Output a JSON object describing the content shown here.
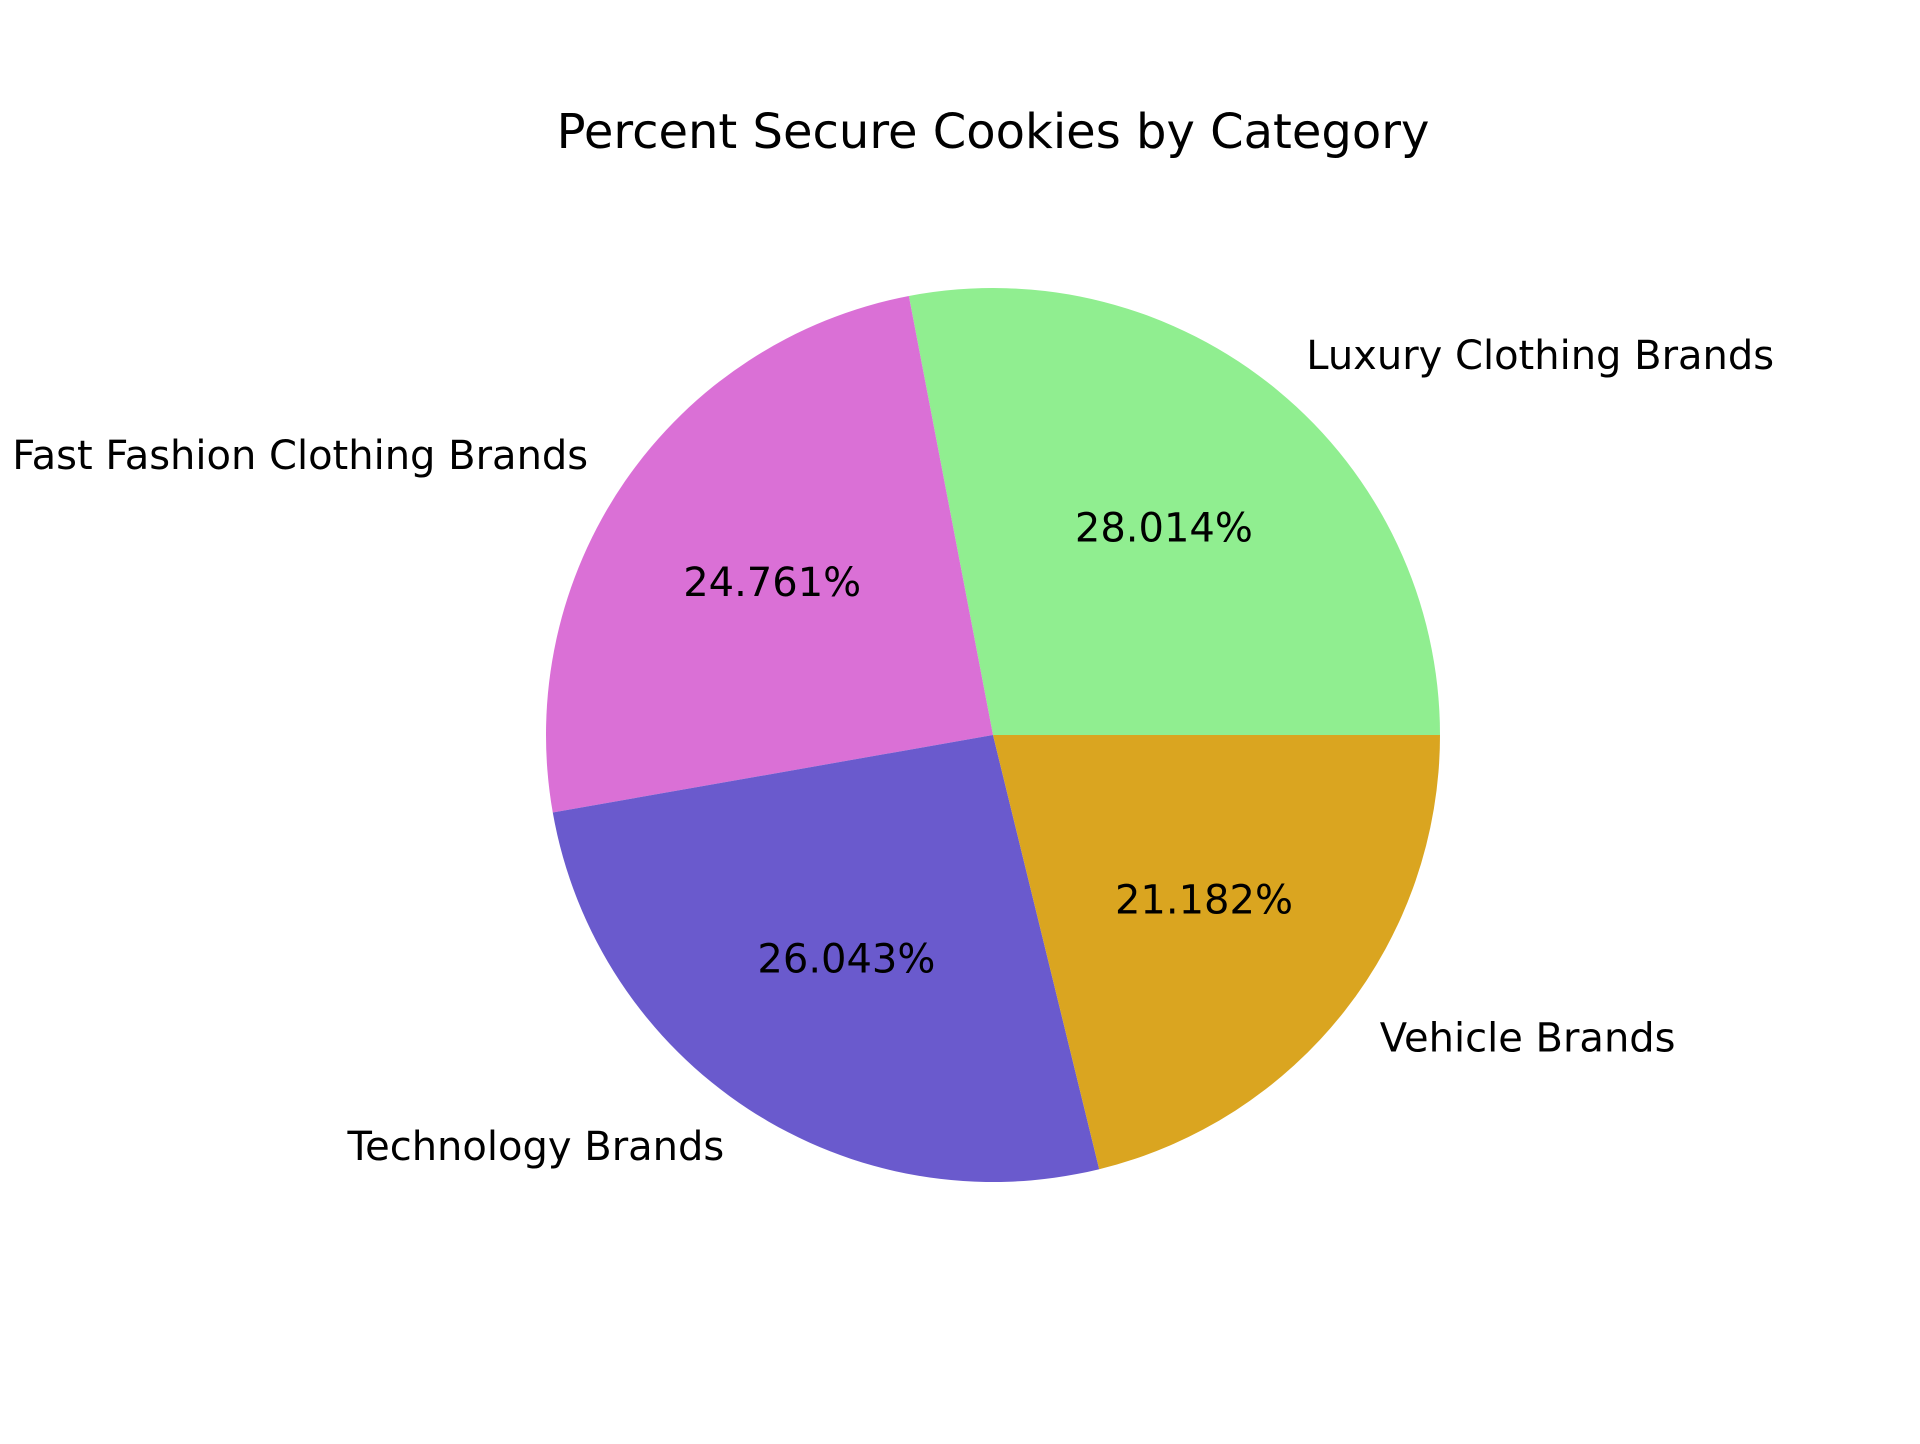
{
  "chart_data": {
    "type": "pie",
    "title": "Percent Secure Cookies by Category",
    "slices": [
      {
        "label": "Luxury Clothing Brands",
        "value": 28.014,
        "pct_label": "28.014%",
        "color": "#90EE90"
      },
      {
        "label": "Fast Fashion Clothing Brands",
        "value": 24.761,
        "pct_label": "24.761%",
        "color": "#DA70D6"
      },
      {
        "label": "Technology Brands",
        "value": 26.043,
        "pct_label": "26.043%",
        "color": "#6A5ACD"
      },
      {
        "label": "Vehicle Brands",
        "value": 21.182,
        "pct_label": "21.182%",
        "color": "#DAA520"
      }
    ],
    "start_angle_deg": 0,
    "direction": "counterclockwise"
  }
}
